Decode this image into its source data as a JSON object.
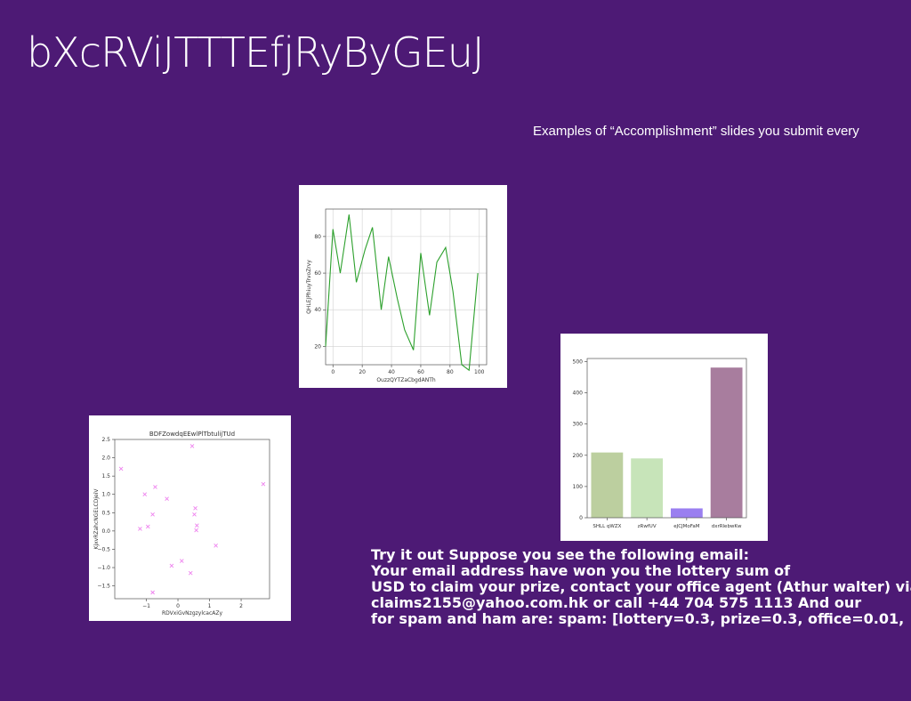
{
  "slide": {
    "title": "bXcRViJTTTEfjRyByGEuJ",
    "subtitle": "Examples of “Accomplishment” slides you submit every",
    "body_lines": [
      "Try it out Suppose you see the following email:",
      "Your email address have won you the lottery sum of",
      "USD to claim your prize, contact your office agent (Athur walter) via",
      "claims2155@yahoo.com.hk or call +44 704 575 1113 And our",
      "for spam and ham are: spam: [lottery=0.3, prize=0.3, office=0.01,"
    ]
  },
  "chart_data": [
    {
      "type": "line",
      "title": "",
      "xlabel": "OuzzQYTZaCbgdANTh",
      "ylabel": "QHLEJPhiuyTrvoZrvy",
      "xlim": [
        -5,
        105
      ],
      "ylim": [
        10,
        95
      ],
      "xticks": [
        0,
        20,
        40,
        60,
        80,
        100
      ],
      "yticks": [
        20,
        40,
        60,
        80
      ],
      "grid": true,
      "color": "#2ca02c",
      "series": [
        {
          "x": [
            -5,
            0,
            5,
            11,
            16,
            22,
            27,
            33,
            38,
            44,
            49,
            55,
            60,
            66,
            71,
            77,
            82,
            88,
            93,
            99
          ],
          "y": [
            20,
            84,
            60,
            92,
            55,
            73,
            85,
            40,
            69,
            46,
            29,
            18,
            71,
            37,
            66,
            74,
            50,
            10,
            7,
            60
          ]
        }
      ]
    },
    {
      "type": "scatter",
      "title": "BDFZowdqEEwlPlTbtulijTUd",
      "xlabel": "RDVxiGvNzgzylcacAZy",
      "ylabel": "KjxvRZahcNGELCDjeiV",
      "xlim": [
        -2.0,
        2.9
      ],
      "ylim": [
        -1.85,
        2.5
      ],
      "xticks": [
        -1,
        0,
        1,
        2
      ],
      "yticks": [
        -1.5,
        -1.0,
        -0.5,
        0.0,
        0.5,
        1.0,
        1.5,
        2.0,
        2.5
      ],
      "ytick_labels": [
        "−1.5",
        "−1.0",
        "−0.5",
        "0.0",
        "0.5",
        "1.0",
        "1.5",
        "2.0",
        "2.5"
      ],
      "xtick_labels": [
        "−1",
        "0",
        "1",
        "2"
      ],
      "grid": false,
      "marker": "x",
      "color": "#ee82ee",
      "series": [
        {
          "x": [
            -1.8,
            -1.05,
            -0.72,
            -0.8,
            -0.35,
            -1.2,
            -0.95,
            0.45,
            0.55,
            0.52,
            0.6,
            0.58,
            1.2,
            0.12,
            -0.2,
            0.4,
            -0.8,
            2.7
          ],
          "y": [
            1.7,
            1.0,
            1.2,
            0.45,
            0.88,
            0.06,
            0.12,
            2.32,
            0.62,
            0.45,
            0.15,
            0.02,
            -0.4,
            -0.82,
            -0.95,
            -1.15,
            -1.68,
            1.28
          ]
        }
      ]
    },
    {
      "type": "bar",
      "title": "",
      "xlabel": "",
      "ylabel": "",
      "categories": [
        "SHLL qWZX",
        "zRwfUV",
        "eJCJMoFaM",
        "dxrRlebwKw"
      ],
      "values": [
        209,
        190,
        30,
        481
      ],
      "colors": [
        "#bccf9f",
        "#c7e4b9",
        "#9a7ff0",
        "#a87d9e"
      ],
      "ylim": [
        0,
        510
      ],
      "yticks": [
        0,
        100,
        200,
        300,
        400,
        500
      ],
      "grid": false
    }
  ]
}
